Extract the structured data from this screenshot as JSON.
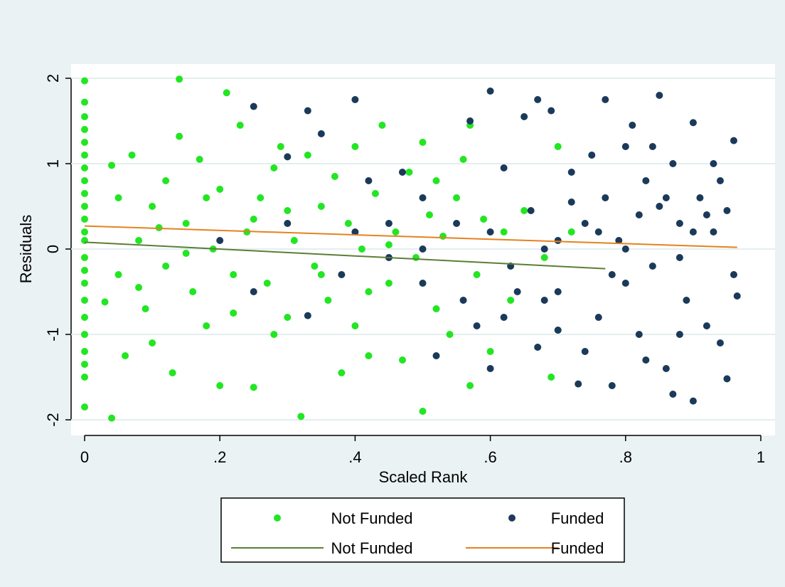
{
  "chart_data": {
    "type": "scatter",
    "xlabel": "Scaled Rank",
    "ylabel": "Residuals",
    "xlim": [
      0,
      1
    ],
    "ylim": [
      -2,
      2
    ],
    "xticks": [
      0,
      {
        "value": 0.2,
        "label": ".2"
      },
      {
        "value": 0.4,
        "label": ".4"
      },
      {
        "value": 0.6,
        "label": ".6"
      },
      {
        "value": 0.8,
        "label": ".8"
      },
      1
    ],
    "yticks": [
      -2,
      -1,
      0,
      1,
      2
    ],
    "grid": true,
    "series": [
      {
        "name": "Not Funded",
        "mark": "scatter",
        "color": "#22e622",
        "x": [
          0,
          0,
          0,
          0,
          0,
          0,
          0,
          0,
          0,
          0,
          0,
          0,
          0,
          0,
          0,
          0,
          0,
          0,
          0,
          0,
          0,
          0,
          0,
          0.04,
          0.03,
          0.04,
          0.05,
          0.05,
          0.06,
          0.07,
          0.08,
          0.09,
          0.1,
          0.1,
          0.12,
          0.12,
          0.13,
          0.14,
          0.14,
          0.15,
          0.16,
          0.17,
          0.18,
          0.19,
          0.2,
          0.2,
          0.21,
          0.22,
          0.23,
          0.24,
          0.25,
          0.26,
          0.27,
          0.28,
          0.29,
          0.3,
          0.31,
          0.32,
          0.33,
          0.34,
          0.35,
          0.36,
          0.37,
          0.38,
          0.39,
          0.4,
          0.4,
          0.41,
          0.42,
          0.43,
          0.44,
          0.45,
          0.46,
          0.47,
          0.48,
          0.49,
          0.5,
          0.5,
          0.51,
          0.52,
          0.53,
          0.54,
          0.55,
          0.56,
          0.57,
          0.57,
          0.58,
          0.59,
          0.6,
          0.62,
          0.63,
          0.65,
          0.68,
          0.69,
          0.7,
          0.7,
          0.72,
          0.15,
          0.25,
          0.35,
          0.45,
          0.3,
          0.22,
          0.11,
          0.08,
          0.42,
          0.52,
          0.18,
          0.28
        ],
        "y": [
          1.97,
          1.72,
          1.55,
          1.4,
          1.25,
          1.1,
          0.95,
          0.8,
          0.65,
          0.5,
          0.35,
          0.2,
          0.1,
          -0.1,
          -0.25,
          -0.4,
          -0.6,
          -0.8,
          -1.0,
          -1.2,
          -1.35,
          -1.5,
          -1.85,
          -1.98,
          -0.62,
          0.98,
          0.6,
          -0.3,
          -1.25,
          1.1,
          0.1,
          -0.7,
          0.5,
          -1.1,
          0.8,
          -0.2,
          -1.45,
          1.32,
          1.99,
          0.3,
          -0.5,
          1.05,
          -0.9,
          0.0,
          -1.6,
          0.7,
          1.83,
          -0.3,
          1.45,
          0.2,
          -1.62,
          0.6,
          -0.4,
          0.95,
          1.2,
          -0.8,
          0.1,
          -1.96,
          1.1,
          -0.2,
          0.5,
          -0.6,
          0.85,
          -1.45,
          0.3,
          1.2,
          -0.9,
          0.0,
          -1.25,
          0.65,
          1.45,
          -0.4,
          0.2,
          -1.3,
          0.9,
          -0.1,
          1.25,
          -1.9,
          0.4,
          -0.7,
          0.15,
          -1.0,
          0.6,
          1.05,
          -1.6,
          1.45,
          -0.3,
          0.35,
          -1.2,
          0.2,
          -0.6,
          0.45,
          -0.1,
          -1.5,
          1.2,
          -0.95,
          0.2,
          -0.05,
          0.35,
          -0.3,
          0.05,
          0.45,
          -0.75,
          0.25,
          -0.45,
          -0.5,
          0.8,
          0.6,
          -1.0
        ]
      },
      {
        "name": "Funded",
        "mark": "scatter",
        "color": "#1b3a5a",
        "x": [
          0.2,
          0.25,
          0.25,
          0.3,
          0.33,
          0.33,
          0.35,
          0.4,
          0.4,
          0.42,
          0.45,
          0.47,
          0.5,
          0.5,
          0.52,
          0.55,
          0.57,
          0.58,
          0.6,
          0.6,
          0.62,
          0.63,
          0.65,
          0.66,
          0.67,
          0.67,
          0.68,
          0.69,
          0.7,
          0.72,
          0.73,
          0.74,
          0.75,
          0.76,
          0.77,
          0.77,
          0.78,
          0.79,
          0.8,
          0.8,
          0.81,
          0.82,
          0.83,
          0.84,
          0.85,
          0.85,
          0.86,
          0.87,
          0.87,
          0.88,
          0.89,
          0.9,
          0.9,
          0.91,
          0.92,
          0.93,
          0.93,
          0.94,
          0.95,
          0.95,
          0.96,
          0.96,
          0.965,
          0.88,
          0.82,
          0.78,
          0.72,
          0.7,
          0.74,
          0.84,
          0.9,
          0.8,
          0.76,
          0.86,
          0.92,
          0.7,
          0.64,
          0.6,
          0.56,
          0.5,
          0.45,
          0.38,
          0.3,
          0.68,
          0.62,
          0.88,
          0.94,
          0.83
        ],
        "y": [
          0.1,
          1.67,
          -0.5,
          1.08,
          1.62,
          -0.78,
          1.35,
          1.75,
          0.2,
          0.8,
          -0.1,
          0.9,
          0.6,
          -0.4,
          -1.25,
          0.3,
          1.5,
          -0.9,
          1.85,
          -1.4,
          0.95,
          -0.2,
          1.55,
          0.45,
          1.75,
          -1.15,
          0.0,
          1.62,
          -0.5,
          0.9,
          -1.58,
          0.3,
          1.1,
          -0.8,
          1.75,
          0.6,
          -1.6,
          0.1,
          1.2,
          -0.4,
          1.45,
          -1.0,
          0.8,
          -0.2,
          1.8,
          0.5,
          -1.4,
          1.0,
          -1.7,
          0.3,
          -0.6,
          1.48,
          -1.78,
          0.6,
          -0.9,
          1.0,
          0.2,
          -1.1,
          0.45,
          -1.52,
          -0.3,
          1.27,
          -0.55,
          -0.1,
          0.4,
          -0.3,
          0.55,
          -0.95,
          -1.2,
          1.2,
          0.2,
          0.0,
          0.2,
          0.6,
          0.4,
          0.1,
          -0.5,
          0.2,
          -0.6,
          0.0,
          0.3,
          -0.3,
          0.3,
          -0.6,
          -0.8,
          -1.0,
          0.8,
          -1.3
        ]
      },
      {
        "name": "Not Funded",
        "mark": "line",
        "color": "#5b7f35",
        "x": [
          0,
          0.77
        ],
        "y": [
          0.08,
          -0.23
        ]
      },
      {
        "name": "Funded",
        "mark": "line",
        "color": "#e5821e",
        "x": [
          0,
          0.965
        ],
        "y": [
          0.27,
          0.02
        ]
      }
    ]
  }
}
